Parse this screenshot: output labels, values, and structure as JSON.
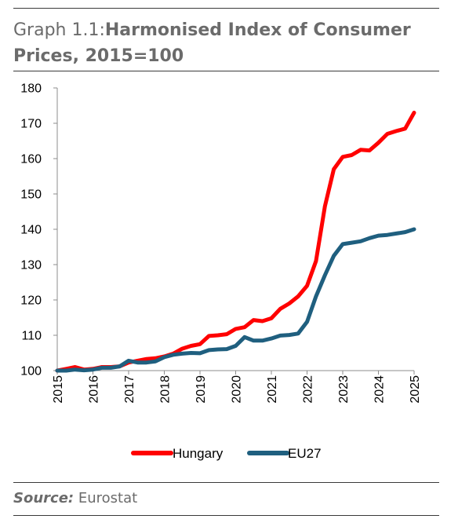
{
  "header": {
    "title_prefix": "Graph 1.1:",
    "title_main": "Harmonised Index of Consumer Prices, 2015=100"
  },
  "source": {
    "label": "Source:",
    "text": "Eurostat"
  },
  "chart_data": {
    "type": "line",
    "title": "Harmonised Index of Consumer Prices, 2015=100",
    "xlabel": "",
    "ylabel": "",
    "ylim": [
      100,
      180
    ],
    "xlim": [
      2015,
      2025
    ],
    "yticks": [
      "100",
      "110",
      "120",
      "130",
      "140",
      "150",
      "160",
      "170",
      "180"
    ],
    "xticks": [
      "2015",
      "2016",
      "2017",
      "2018",
      "2019",
      "2020",
      "2021",
      "2022",
      "2023",
      "2024",
      "2025"
    ],
    "grid": false,
    "legend": "bottom",
    "series": [
      {
        "name": "Hungary",
        "color": "#ff0000",
        "x": [
          2015.0,
          2015.25,
          2015.5,
          2015.75,
          2016.0,
          2016.25,
          2016.5,
          2016.75,
          2017.0,
          2017.25,
          2017.5,
          2017.75,
          2018.0,
          2018.25,
          2018.5,
          2018.75,
          2019.0,
          2019.25,
          2019.5,
          2019.75,
          2020.0,
          2020.25,
          2020.5,
          2020.75,
          2021.0,
          2021.25,
          2021.5,
          2021.75,
          2022.0,
          2022.25,
          2022.5,
          2022.75,
          2023.0,
          2023.25,
          2023.5,
          2023.75,
          2024.0,
          2024.25,
          2024.5,
          2024.75,
          2025.0
        ],
        "values": [
          100.0,
          100.5,
          101.0,
          100.3,
          100.5,
          101.0,
          101.0,
          101.2,
          102.3,
          102.8,
          103.3,
          103.5,
          104.0,
          104.8,
          106.2,
          107.0,
          107.5,
          109.8,
          110.0,
          110.3,
          111.8,
          112.3,
          114.3,
          114.0,
          114.8,
          117.5,
          119.0,
          121.0,
          124.0,
          131.0,
          146.5,
          157.0,
          160.5,
          161.0,
          162.5,
          162.3,
          164.5,
          167.0,
          167.8,
          168.5,
          173.0
        ]
      },
      {
        "name": "EU27",
        "color": "#1f5f7f",
        "x": [
          2015.0,
          2015.25,
          2015.5,
          2015.75,
          2016.0,
          2016.25,
          2016.5,
          2016.75,
          2017.0,
          2017.25,
          2017.5,
          2017.75,
          2018.0,
          2018.25,
          2018.5,
          2018.75,
          2019.0,
          2019.25,
          2019.5,
          2019.75,
          2020.0,
          2020.25,
          2020.5,
          2020.75,
          2021.0,
          2021.25,
          2021.5,
          2021.75,
          2022.0,
          2022.25,
          2022.5,
          2022.75,
          2023.0,
          2023.25,
          2023.5,
          2023.75,
          2024.0,
          2024.25,
          2024.5,
          2024.75,
          2025.0
        ],
        "values": [
          100.0,
          100.0,
          100.3,
          100.1,
          100.3,
          100.8,
          100.8,
          101.2,
          102.8,
          102.3,
          102.3,
          102.6,
          103.8,
          104.5,
          104.8,
          105.0,
          104.9,
          105.8,
          106.0,
          106.1,
          107.0,
          109.5,
          108.5,
          108.5,
          109.1,
          109.9,
          110.1,
          110.5,
          113.8,
          121.0,
          127.0,
          132.5,
          135.8,
          136.2,
          136.6,
          137.5,
          138.2,
          138.4,
          138.8,
          139.2,
          140.0
        ]
      }
    ]
  }
}
